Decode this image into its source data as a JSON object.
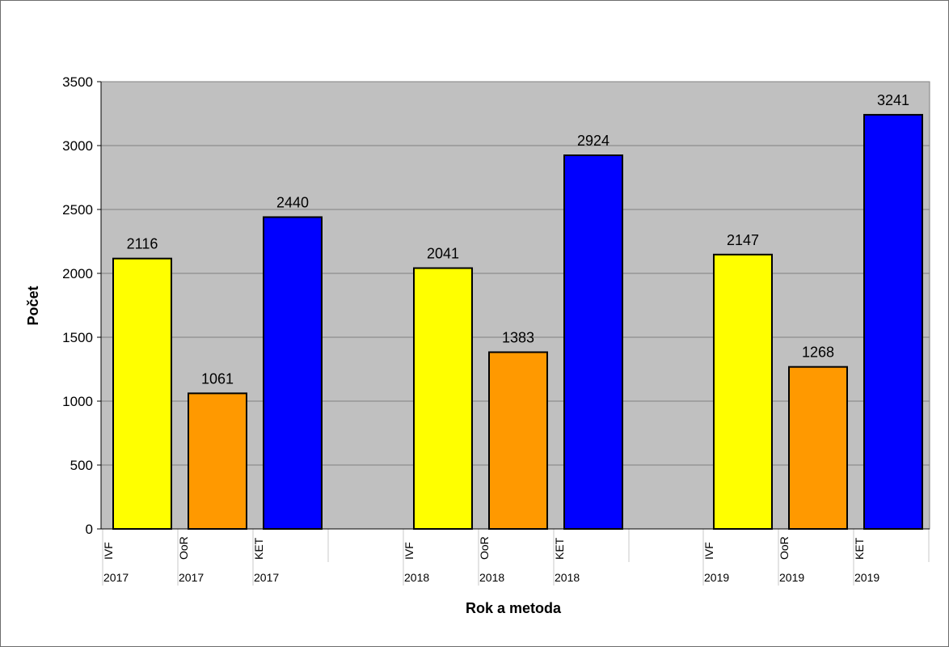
{
  "chart_data": {
    "type": "bar",
    "title": "",
    "xlabel": "Rok a metoda",
    "ylabel": "Počet",
    "ylim": [
      0,
      3500
    ],
    "yticks": [
      0,
      500,
      1000,
      1500,
      2000,
      2500,
      3000,
      3500
    ],
    "grid": true,
    "legend": "none",
    "groups": [
      {
        "year": "2017",
        "bars": [
          {
            "method": "IVF",
            "value": 2116
          },
          {
            "method": "OoR",
            "value": 1061
          },
          {
            "method": "KET",
            "value": 2440
          }
        ]
      },
      {
        "year": "2018",
        "bars": [
          {
            "method": "IVF",
            "value": 2041
          },
          {
            "method": "OoR",
            "value": 1383
          },
          {
            "method": "KET",
            "value": 2924
          }
        ]
      },
      {
        "year": "2019",
        "bars": [
          {
            "method": "IVF",
            "value": 2147
          },
          {
            "method": "OoR",
            "value": 1268
          },
          {
            "method": "KET",
            "value": 3241
          }
        ]
      }
    ],
    "colors": {
      "IVF": "#ffff00",
      "OoR": "#ff9900",
      "KET": "#0000ff",
      "plot_bg": "#c0c0c0",
      "grid": "#808080"
    }
  }
}
